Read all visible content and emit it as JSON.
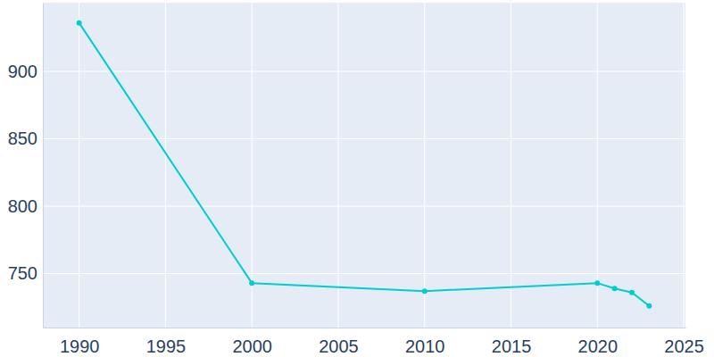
{
  "chart_data": {
    "type": "line",
    "x": [
      1990,
      2000,
      2010,
      2020,
      2021,
      2022,
      2023
    ],
    "values": [
      936,
      743,
      737,
      743,
      739,
      736,
      726
    ],
    "color": "#00cdd0",
    "marker": "circle",
    "xlim": [
      1987.9,
      2025.1
    ],
    "xticks": [
      1990,
      1995,
      2000,
      2005,
      2010,
      2015,
      2020,
      2025
    ],
    "ylim": [
      710,
      951
    ],
    "yticks": [
      750,
      800,
      850,
      900
    ],
    "grid": true
  }
}
